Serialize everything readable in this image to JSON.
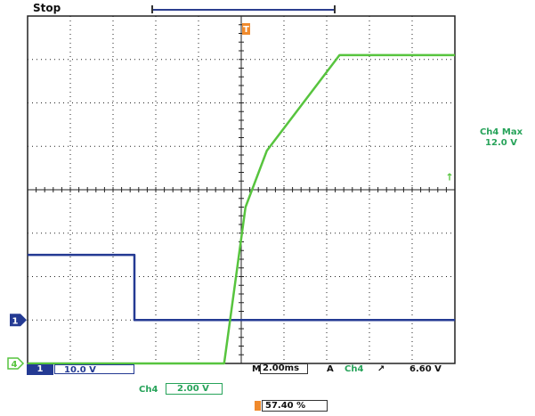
{
  "header": {
    "run_state": "Stop"
  },
  "markers": {
    "trigger_position_glyph": "T",
    "channel1_glyph": "1",
    "channel4_glyph": "4",
    "trigger_level_glyph": "↑"
  },
  "side_readout": {
    "line1": "Ch4 Max",
    "line2": "12.0 V"
  },
  "status": {
    "ch1_badge": "1",
    "ch1_scale": "10.0 V",
    "timebase_prefix": "M",
    "timebase": "2.00ms",
    "trigger_mode": "A",
    "trigger_channel": "Ch4",
    "trigger_slope": "↗",
    "trigger_level": "6.60 V",
    "ch4_label": "Ch4",
    "ch4_scale": "2.00 V",
    "horizontal_position": "57.40 %"
  },
  "colors": {
    "ch1_trace": "#243a93",
    "ch4_trace": "#57c43e",
    "trigger": "#f08a2c",
    "graticule": "#222222"
  },
  "chart_data": {
    "type": "line",
    "xlabel": "",
    "ylabel": "",
    "grid": true,
    "graticule_divisions": {
      "x": 10,
      "y": 8
    },
    "xlim": [
      0,
      10
    ],
    "ylim": [
      0,
      8
    ],
    "series": [
      {
        "trace": "ch1",
        "x": [
          0,
          2.5,
          2.5,
          10
        ],
        "y": [
          2.5,
          2.5,
          1.0,
          1.0
        ]
      },
      {
        "trace": "ch4",
        "x": [
          0,
          4.6,
          5.1,
          5.6,
          7.3,
          10
        ],
        "y": [
          0,
          0,
          3.6,
          4.9,
          7.1,
          7.1
        ]
      }
    ]
  }
}
